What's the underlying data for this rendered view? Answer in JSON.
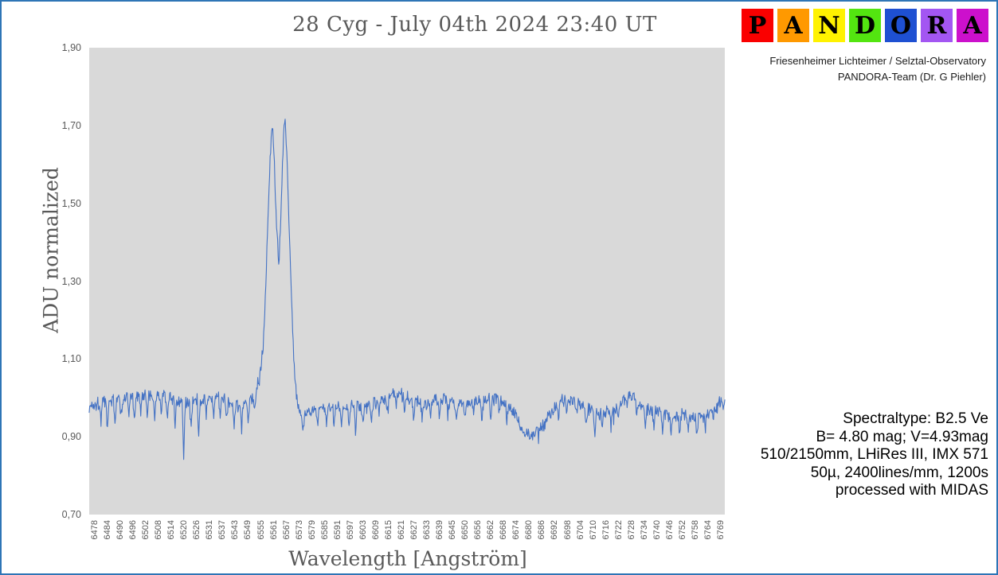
{
  "window": {
    "border_color": "#2E75B6",
    "background": "#FFFFFF"
  },
  "observatory": {
    "line1": "Friesenheimer Lichteimer / Selztal-Observatory",
    "line2": "PANDORA-Team (Dr. G Piehler)"
  },
  "logo": {
    "letters": [
      {
        "char": "P",
        "color": "#FA0000"
      },
      {
        "char": "A",
        "color": "#FF9900"
      },
      {
        "char": "N",
        "color": "#FFF200"
      },
      {
        "char": "D",
        "color": "#53E510"
      },
      {
        "char": "O",
        "color": "#1E50D2"
      },
      {
        "char": "R",
        "color": "#A356F2"
      },
      {
        "char": "A",
        "color": "#CC10CC"
      }
    ]
  },
  "details": {
    "lines": [
      "Spectraltype: B2.5 Ve",
      "B= 4.80 mag;  V=4.93mag",
      "510/2150mm, LHiRes III, IMX 571",
      "50µ, 2400lines/mm, 1200s",
      "processed with MIDAS"
    ]
  },
  "chart_data": {
    "type": "line",
    "title": "28 Cyg - July 04th 2024 23:40 UT",
    "xlabel": "Wavelength [Angström]",
    "ylabel": "ADU normalized",
    "grid": false,
    "legend": false,
    "line_color": "#4472C4",
    "plot_bg": "#D9D9D9",
    "tick_color": "#595959",
    "xlim": [
      6475.5,
      6771.5
    ],
    "ylim": [
      0.7,
      1.9
    ],
    "y_tick_labels": [
      "1,90",
      "1,70",
      "1,50",
      "1,30",
      "1,10",
      "0,90",
      "0,70"
    ],
    "y_tick_values": [
      1.9,
      1.7,
      1.5,
      1.3,
      1.1,
      0.9,
      0.7
    ],
    "x_tick_labels": [
      6478,
      6484,
      6490,
      6496,
      6502,
      6508,
      6514,
      6520,
      6526,
      6531,
      6537,
      6543,
      6549,
      6555,
      6561,
      6567,
      6573,
      6579,
      6585,
      6591,
      6597,
      6603,
      6609,
      6615,
      6621,
      6627,
      6633,
      6639,
      6645,
      6650,
      6656,
      6662,
      6668,
      6674,
      6680,
      6686,
      6692,
      6698,
      6704,
      6710,
      6716,
      6722,
      6728,
      6734,
      6740,
      6746,
      6752,
      6758,
      6764,
      6769
    ],
    "description": "H-alpha spectrum of 28 Cyg: noisy continuum near 1.0 with telluric absorption spikes, double-peaked H-alpha emission (V peak 1.70 at 6560.8 A, central dip 1.35 at 6563.9 A, R peak 1.715 at 6566.5 A), broad He I absorption near 6680 A reaching 0.905.",
    "profile_points": [
      [
        6475.5,
        0.975
      ],
      [
        6478,
        0.985
      ],
      [
        6483,
        0.99
      ],
      [
        6488,
        0.995
      ],
      [
        6493,
        1.0
      ],
      [
        6498,
        1.005
      ],
      [
        6503,
        1.01
      ],
      [
        6508,
        1.005
      ],
      [
        6512,
        1.0
      ],
      [
        6516,
        0.99
      ],
      [
        6520,
        0.985
      ],
      [
        6524,
        0.99
      ],
      [
        6528,
        0.995
      ],
      [
        6533,
        1.0
      ],
      [
        6538,
        0.995
      ],
      [
        6542,
        0.985
      ],
      [
        6546,
        0.98
      ],
      [
        6550,
        0.99
      ],
      [
        6553,
        1.01
      ],
      [
        6555,
        1.06
      ],
      [
        6556.5,
        1.14
      ],
      [
        6557.5,
        1.26
      ],
      [
        6558.5,
        1.42
      ],
      [
        6559.5,
        1.58
      ],
      [
        6560.3,
        1.68
      ],
      [
        6560.8,
        1.7
      ],
      [
        6561.3,
        1.665
      ],
      [
        6562,
        1.56
      ],
      [
        6562.8,
        1.44
      ],
      [
        6563.5,
        1.37
      ],
      [
        6563.9,
        1.35
      ],
      [
        6564.4,
        1.41
      ],
      [
        6565.2,
        1.55
      ],
      [
        6565.9,
        1.66
      ],
      [
        6566.5,
        1.715
      ],
      [
        6567.1,
        1.69
      ],
      [
        6567.8,
        1.58
      ],
      [
        6568.6,
        1.44
      ],
      [
        6569.4,
        1.3
      ],
      [
        6570.2,
        1.17
      ],
      [
        6571,
        1.08
      ],
      [
        6572,
        1.01
      ],
      [
        6573,
        0.975
      ],
      [
        6574.2,
        0.945
      ],
      [
        6575,
        0.92
      ],
      [
        6575.8,
        0.945
      ],
      [
        6577,
        0.965
      ],
      [
        6580,
        0.97
      ],
      [
        6584,
        0.975
      ],
      [
        6590,
        0.98
      ],
      [
        6596,
        0.978
      ],
      [
        6602,
        0.978
      ],
      [
        6608,
        0.985
      ],
      [
        6613,
        0.995
      ],
      [
        6617,
        1.01
      ],
      [
        6620,
        1.015
      ],
      [
        6623,
        1.005
      ],
      [
        6627,
        0.99
      ],
      [
        6632,
        0.982
      ],
      [
        6637,
        0.995
      ],
      [
        6640,
        1.0
      ],
      [
        6643,
        0.99
      ],
      [
        6648,
        0.985
      ],
      [
        6653,
        0.985
      ],
      [
        6658,
        0.99
      ],
      [
        6662,
        0.995
      ],
      [
        6666,
        1.0
      ],
      [
        6669,
        0.99
      ],
      [
        6672,
        0.975
      ],
      [
        6675,
        0.95
      ],
      [
        6678,
        0.915
      ],
      [
        6681,
        0.905
      ],
      [
        6684,
        0.915
      ],
      [
        6687,
        0.93
      ],
      [
        6690,
        0.955
      ],
      [
        6693,
        0.98
      ],
      [
        6696,
        0.995
      ],
      [
        6699,
        1.0
      ],
      [
        6702,
        0.99
      ],
      [
        6706,
        0.98
      ],
      [
        6710,
        0.965
      ],
      [
        6713,
        0.955
      ],
      [
        6716,
        0.965
      ],
      [
        6720,
        0.97
      ],
      [
        6724,
        0.995
      ],
      [
        6727,
        1.01
      ],
      [
        6730,
        0.995
      ],
      [
        6734,
        0.975
      ],
      [
        6738,
        0.965
      ],
      [
        6743,
        0.96
      ],
      [
        6748,
        0.955
      ],
      [
        6753,
        0.955
      ],
      [
        6757,
        0.95
      ],
      [
        6761,
        0.95
      ],
      [
        6765,
        0.965
      ],
      [
        6768,
        0.98
      ],
      [
        6771.5,
        0.995
      ]
    ],
    "telluric_dips": [
      [
        6481,
        0.045
      ],
      [
        6484,
        0.07
      ],
      [
        6487.5,
        0.055
      ],
      [
        6490.5,
        0.04
      ],
      [
        6494,
        0.05
      ],
      [
        6496.5,
        0.065
      ],
      [
        6499.5,
        0.045
      ],
      [
        6502.5,
        0.05
      ],
      [
        6506,
        0.055
      ],
      [
        6509,
        0.045
      ],
      [
        6512,
        0.05
      ],
      [
        6515.5,
        0.06
      ],
      [
        6519.5,
        0.135
      ],
      [
        6523,
        0.05
      ],
      [
        6526.5,
        0.085
      ],
      [
        6530,
        0.05
      ],
      [
        6533.5,
        0.045
      ],
      [
        6536.5,
        0.055
      ],
      [
        6539.5,
        0.045
      ],
      [
        6543,
        0.065
      ],
      [
        6546.5,
        0.06
      ],
      [
        6549.5,
        0.045
      ],
      [
        6552.5,
        0.04
      ],
      [
        6582,
        0.035
      ],
      [
        6586,
        0.045
      ],
      [
        6589.5,
        0.04
      ],
      [
        6593,
        0.045
      ],
      [
        6596.5,
        0.04
      ],
      [
        6599.5,
        0.06
      ],
      [
        6603,
        0.045
      ],
      [
        6607,
        0.04
      ],
      [
        6610.5,
        0.035
      ],
      [
        6614.5,
        0.04
      ],
      [
        6618.5,
        0.035
      ],
      [
        6622.5,
        0.04
      ],
      [
        6626.5,
        0.045
      ],
      [
        6630.5,
        0.035
      ],
      [
        6634.5,
        0.04
      ],
      [
        6638.5,
        0.045
      ],
      [
        6642.5,
        0.035
      ],
      [
        6646.5,
        0.04
      ],
      [
        6650.5,
        0.035
      ],
      [
        6654.5,
        0.03
      ],
      [
        6658.5,
        0.045
      ],
      [
        6662.5,
        0.04
      ],
      [
        6666.5,
        0.035
      ],
      [
        6670,
        0.04
      ],
      [
        6694,
        0.035
      ],
      [
        6698,
        0.03
      ],
      [
        6702.5,
        0.035
      ],
      [
        6707,
        0.045
      ],
      [
        6711,
        0.05
      ],
      [
        6714.5,
        0.04
      ],
      [
        6718.5,
        0.045
      ],
      [
        6722,
        0.035
      ],
      [
        6726,
        0.03
      ],
      [
        6730.5,
        0.035
      ],
      [
        6734.5,
        0.04
      ],
      [
        6738.5,
        0.045
      ],
      [
        6742.5,
        0.04
      ],
      [
        6746.5,
        0.045
      ],
      [
        6750.5,
        0.05
      ],
      [
        6754.5,
        0.04
      ],
      [
        6758.5,
        0.045
      ],
      [
        6762.5,
        0.035
      ],
      [
        6766,
        0.03
      ]
    ],
    "noise": {
      "seed": 1337,
      "amplitude": 0.014,
      "step": 0.25,
      "spike_chance": 0.025,
      "spike_depth": 0.03
    }
  }
}
